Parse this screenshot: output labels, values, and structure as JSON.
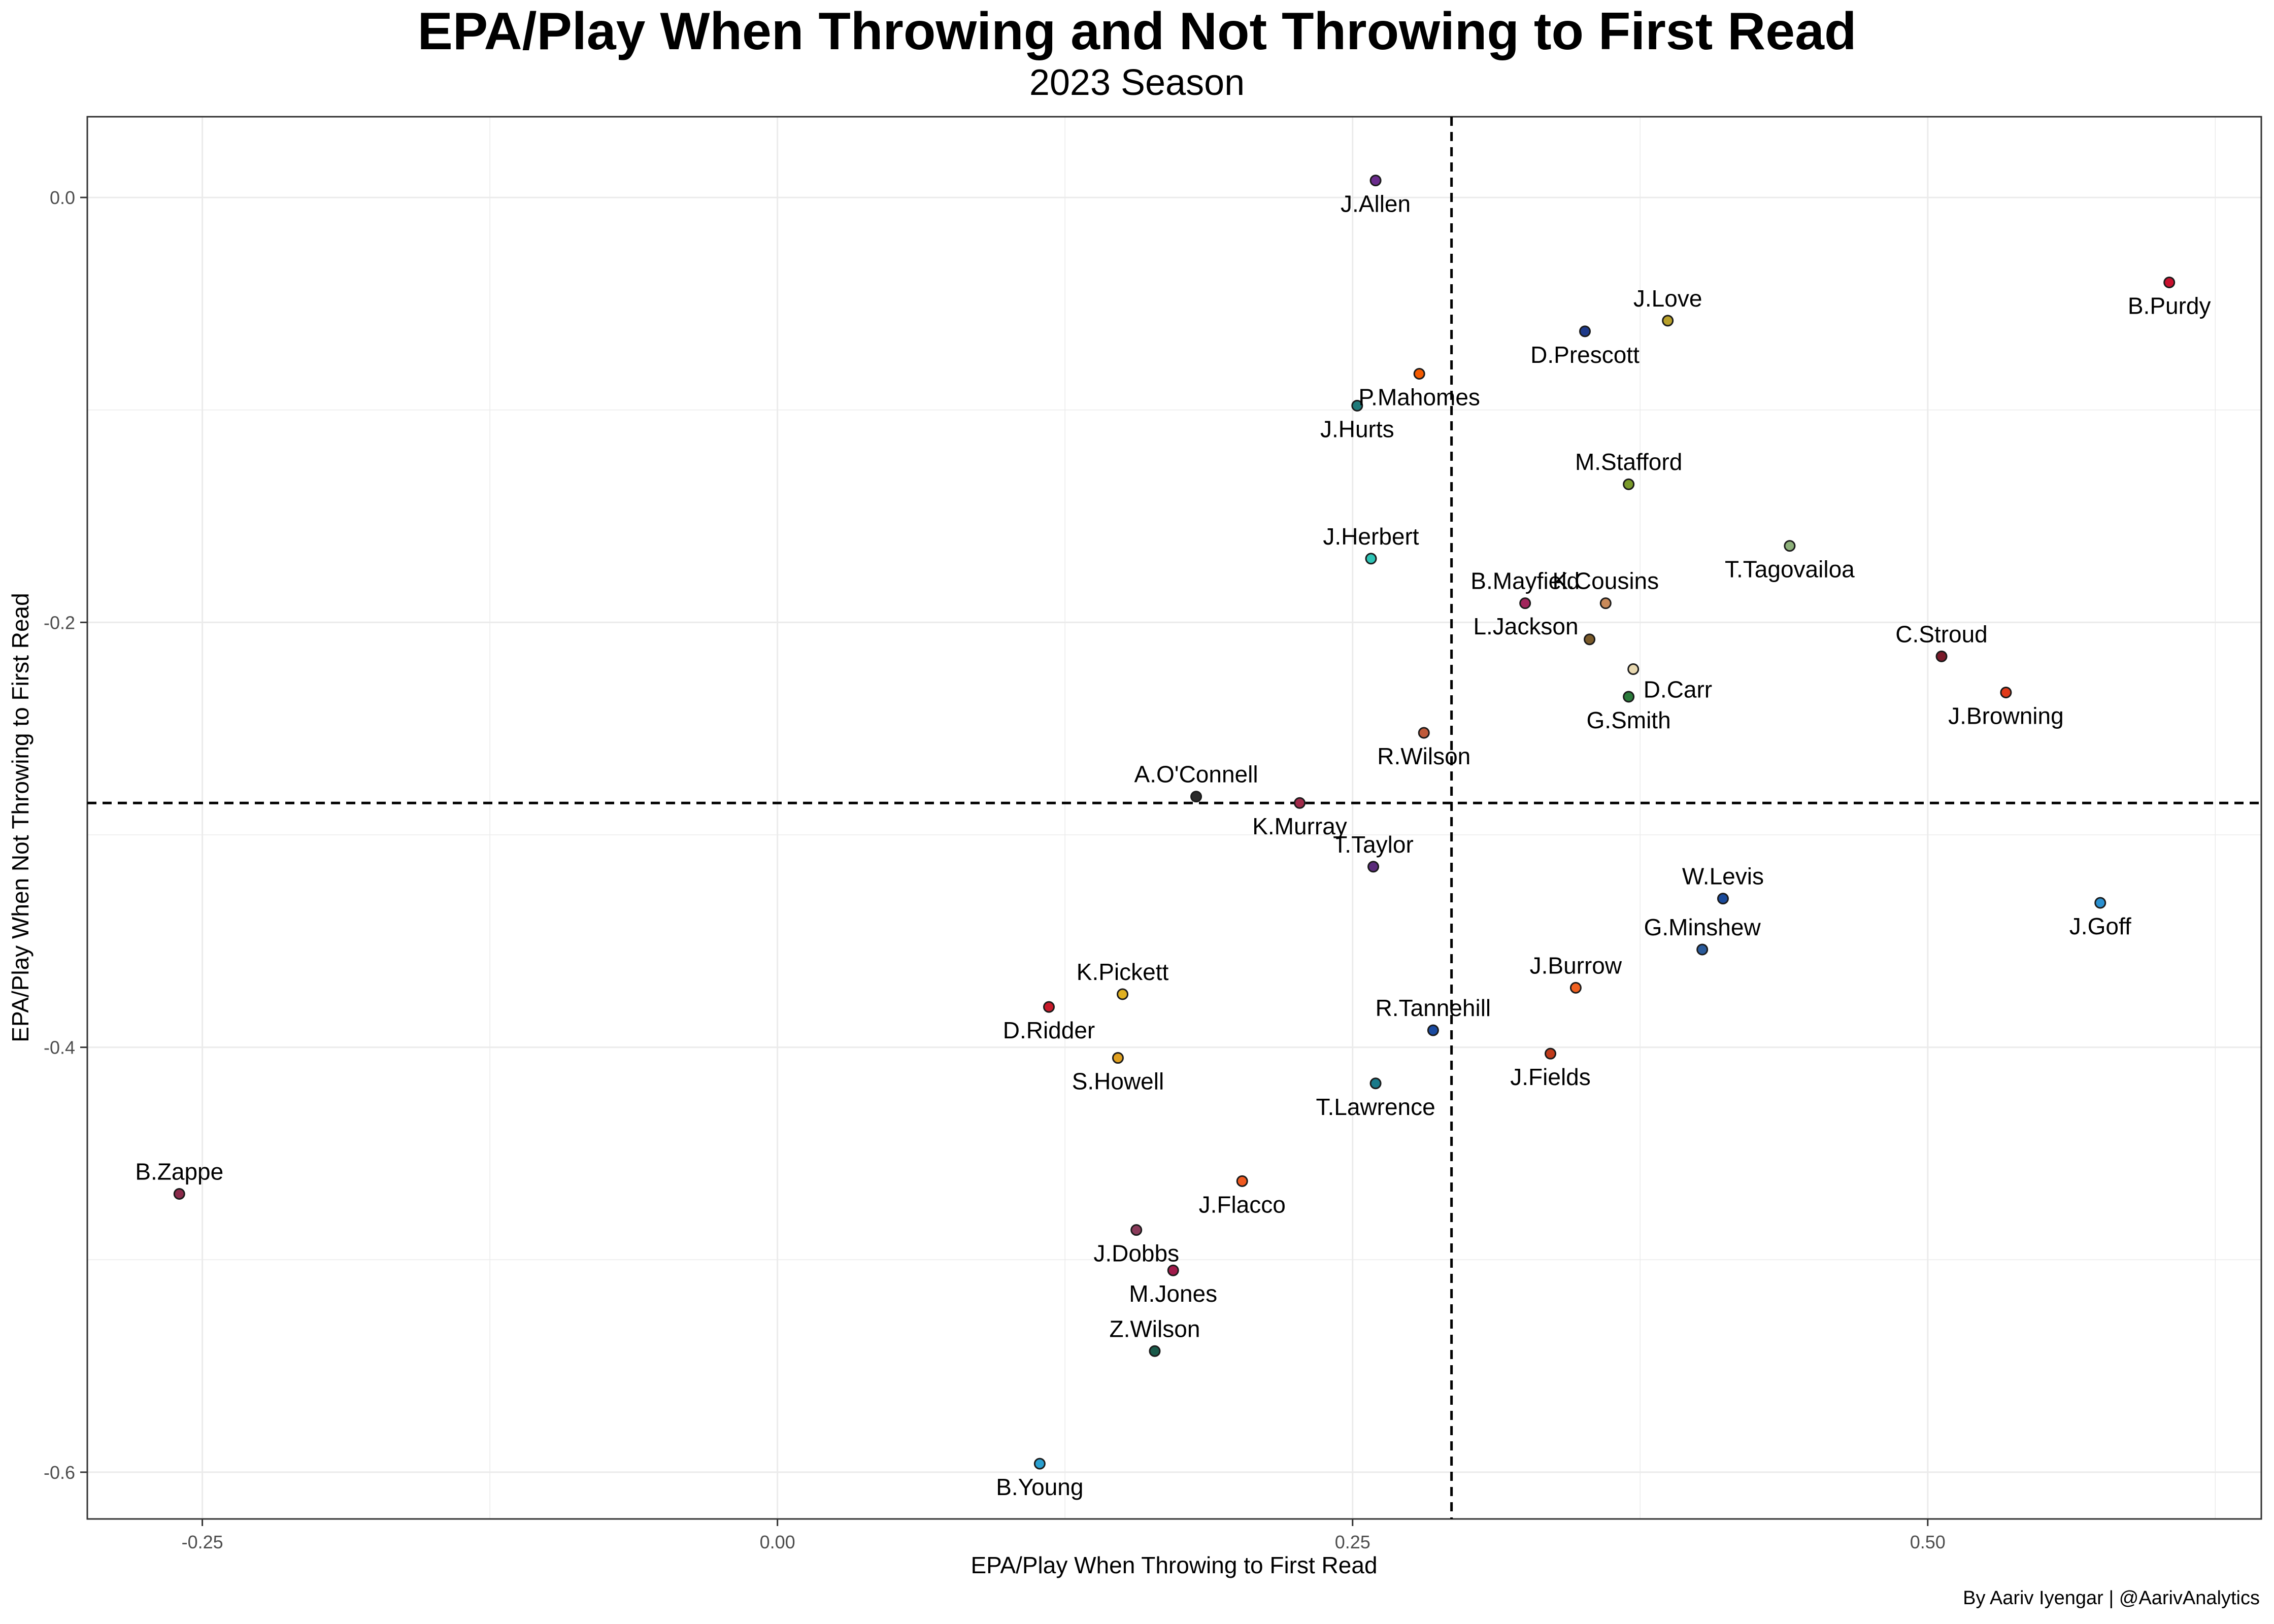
{
  "chart_data": {
    "type": "scatter",
    "title": "EPA/Play When Throwing and Not Throwing to First Read",
    "subtitle": "2023 Season",
    "xlabel": "EPA/Play When Throwing to First Read",
    "ylabel": "EPA/Play When Not Throwing to First Read",
    "caption": "By Aariv Iyengar | @AarivAnalytics",
    "xlim": [
      -0.3,
      0.645
    ],
    "ylim": [
      -0.622,
      0.038
    ],
    "x_ticks": [
      -0.25,
      0.0,
      0.25,
      0.5
    ],
    "x_tick_labels": [
      "-0.25",
      "0.00",
      "0.25",
      "0.50"
    ],
    "y_ticks": [
      0.0,
      -0.2,
      -0.4,
      -0.6
    ],
    "y_tick_labels": [
      "0.0",
      "-0.2",
      "-0.4",
      "-0.6"
    ],
    "grid": true,
    "reference_lines": {
      "vertical_x": 0.293,
      "horizontal_y": -0.285
    },
    "points": [
      {
        "label": "J.Allen",
        "x": 0.26,
        "y": 0.008,
        "color": "#6a2b8c",
        "label_pos": "below"
      },
      {
        "label": "B.Purdy",
        "x": 0.605,
        "y": -0.04,
        "color": "#c8102e",
        "label_pos": "below"
      },
      {
        "label": "J.Love",
        "x": 0.387,
        "y": -0.058,
        "color": "#b8a02a",
        "label_pos": "above"
      },
      {
        "label": "D.Prescott",
        "x": 0.351,
        "y": -0.063,
        "color": "#1e3a8a",
        "label_pos": "below"
      },
      {
        "label": "P.Mahomes",
        "x": 0.279,
        "y": -0.083,
        "color": "#f45a00",
        "label_pos": "below"
      },
      {
        "label": "J.Hurts",
        "x": 0.252,
        "y": -0.098,
        "color": "#1f7a7a",
        "label_pos": "below"
      },
      {
        "label": "M.Stafford",
        "x": 0.37,
        "y": -0.135,
        "color": "#7a9a2a",
        "label_pos": "above"
      },
      {
        "label": "T.Tagovailoa",
        "x": 0.44,
        "y": -0.164,
        "color": "#8db07a",
        "label_pos": "below"
      },
      {
        "label": "J.Herbert",
        "x": 0.258,
        "y": -0.17,
        "color": "#2ec4b6",
        "label_pos": "above"
      },
      {
        "label": "B.Mayfield",
        "x": 0.325,
        "y": -0.191,
        "color": "#a1245b",
        "label_pos": "above"
      },
      {
        "label": "K.Cousins",
        "x": 0.36,
        "y": -0.191,
        "color": "#c98a5a",
        "label_pos": "above"
      },
      {
        "label": "L.Jackson",
        "x": 0.353,
        "y": -0.208,
        "color": "#7a5a2a",
        "label_pos": "left"
      },
      {
        "label": "D.Carr",
        "x": 0.372,
        "y": -0.222,
        "color": "#e8d8b0",
        "label_pos": "below-right"
      },
      {
        "label": "G.Smith",
        "x": 0.37,
        "y": -0.235,
        "color": "#2a7a3a",
        "label_pos": "below"
      },
      {
        "label": "C.Stroud",
        "x": 0.506,
        "y": -0.216,
        "color": "#7a1a2a",
        "label_pos": "above"
      },
      {
        "label": "J.Browning",
        "x": 0.534,
        "y": -0.233,
        "color": "#e03a1a",
        "label_pos": "below"
      },
      {
        "label": "R.Wilson",
        "x": 0.281,
        "y": -0.252,
        "color": "#c05a3a",
        "label_pos": "below"
      },
      {
        "label": "A.O'Connell",
        "x": 0.182,
        "y": -0.282,
        "color": "#2a2a2a",
        "label_pos": "above"
      },
      {
        "label": "K.Murray",
        "x": 0.227,
        "y": -0.285,
        "color": "#a12a4a",
        "label_pos": "below"
      },
      {
        "label": "T.Taylor",
        "x": 0.259,
        "y": -0.315,
        "color": "#5a2a7a",
        "label_pos": "above"
      },
      {
        "label": "W.Levis",
        "x": 0.411,
        "y": -0.33,
        "color": "#1a4a9a",
        "label_pos": "above"
      },
      {
        "label": "J.Goff",
        "x": 0.575,
        "y": -0.332,
        "color": "#2a90d0",
        "label_pos": "below"
      },
      {
        "label": "G.Minshew",
        "x": 0.402,
        "y": -0.354,
        "color": "#2a5a9a",
        "label_pos": "above"
      },
      {
        "label": "K.Pickett",
        "x": 0.15,
        "y": -0.375,
        "color": "#e0b020",
        "label_pos": "above"
      },
      {
        "label": "D.Ridder",
        "x": 0.118,
        "y": -0.381,
        "color": "#c81a2a",
        "label_pos": "below"
      },
      {
        "label": "J.Burrow",
        "x": 0.347,
        "y": -0.372,
        "color": "#f06020",
        "label_pos": "above"
      },
      {
        "label": "R.Tannehill",
        "x": 0.285,
        "y": -0.392,
        "color": "#1a4aa0",
        "label_pos": "above"
      },
      {
        "label": "S.Howell",
        "x": 0.148,
        "y": -0.405,
        "color": "#e0a020",
        "label_pos": "below"
      },
      {
        "label": "J.Fields",
        "x": 0.336,
        "y": -0.403,
        "color": "#c03a1a",
        "label_pos": "below"
      },
      {
        "label": "T.Lawrence",
        "x": 0.26,
        "y": -0.417,
        "color": "#1a7a8a",
        "label_pos": "below"
      },
      {
        "label": "B.Zappe",
        "x": -0.26,
        "y": -0.469,
        "color": "#8a2a4a",
        "label_pos": "above"
      },
      {
        "label": "J.Flacco",
        "x": 0.202,
        "y": -0.463,
        "color": "#f05a20",
        "label_pos": "below"
      },
      {
        "label": "J.Dobbs",
        "x": 0.156,
        "y": -0.486,
        "color": "#8a3a5a",
        "label_pos": "below"
      },
      {
        "label": "M.Jones",
        "x": 0.172,
        "y": -0.505,
        "color": "#a01a4a",
        "label_pos": "below"
      },
      {
        "label": "Z.Wilson",
        "x": 0.164,
        "y": -0.543,
        "color": "#1a5a4a",
        "label_pos": "above"
      },
      {
        "label": "B.Young",
        "x": 0.114,
        "y": -0.596,
        "color": "#2aa0d0",
        "label_pos": "below"
      }
    ]
  }
}
